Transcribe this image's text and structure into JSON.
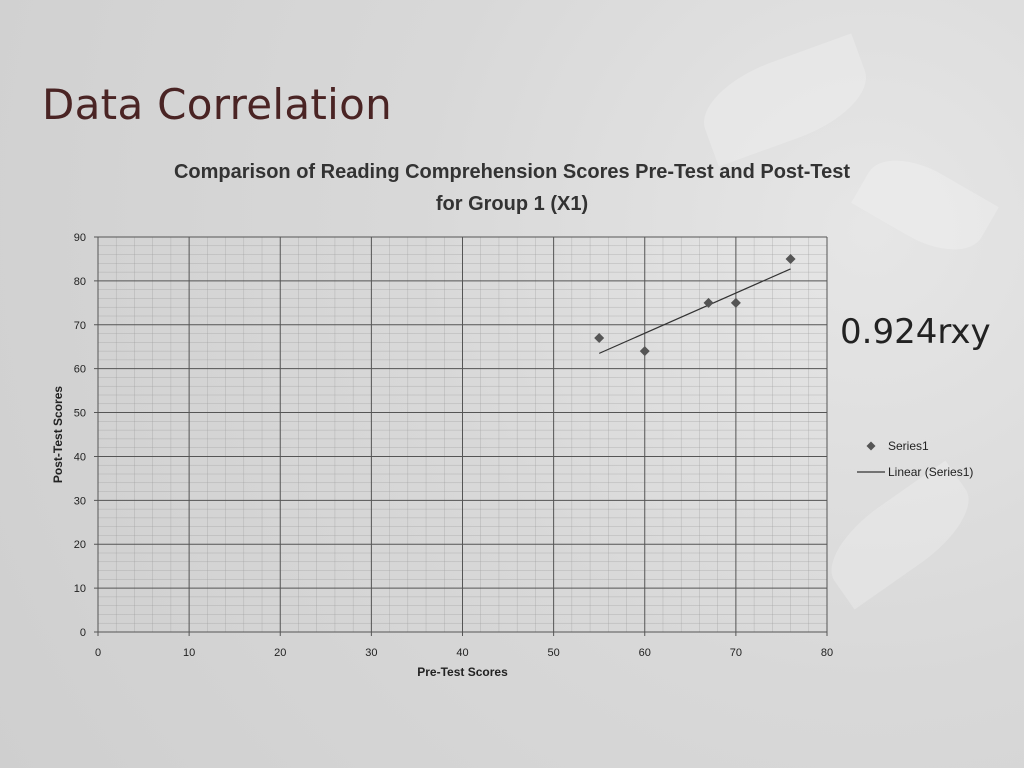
{
  "slide": {
    "title": "Data Correlation",
    "correlation_label": "0.924rxy"
  },
  "chart_data": {
    "type": "scatter",
    "title_line1": "Comparison of Reading Comprehension Scores Pre-Test and Post-Test",
    "title_line2": "for Group 1 (X1)",
    "xlabel": "Pre-Test Scores",
    "ylabel": "Post-Test Scores",
    "xlim": [
      0,
      80
    ],
    "ylim": [
      0,
      90
    ],
    "x_ticks": [
      0,
      10,
      20,
      30,
      40,
      50,
      60,
      70,
      80
    ],
    "y_ticks": [
      0,
      10,
      20,
      30,
      40,
      50,
      60,
      70,
      80,
      90
    ],
    "grid": true,
    "legend_position": "right",
    "series": [
      {
        "name": "Series1",
        "marker": "diamond",
        "color": "#555555",
        "points": [
          {
            "x": 55,
            "y": 67
          },
          {
            "x": 60,
            "y": 64
          },
          {
            "x": 67,
            "y": 75
          },
          {
            "x": 70,
            "y": 75
          },
          {
            "x": 76,
            "y": 85
          }
        ]
      }
    ],
    "trendline": {
      "name": "Linear (Series1)",
      "color": "#333333",
      "type": "linear"
    }
  }
}
